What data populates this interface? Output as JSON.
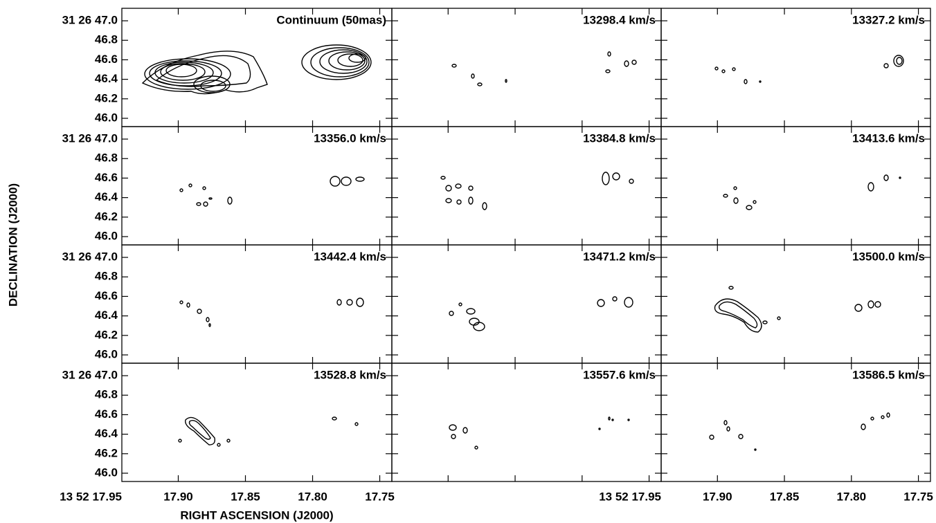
{
  "chart_data": {
    "type": "contour",
    "xlabel": "RIGHT ASCENSION (J2000)",
    "ylabel": "DECLINATION (J2000)",
    "panels": [
      "Continuum (50mas)",
      "13298.4 km/s",
      "13327.2 km/s",
      "13356.0 km/s",
      "13384.8 km/s",
      "13413.6 km/s",
      "13442.4 km/s",
      "13471.2 km/s",
      "13500.0 km/s",
      "13528.8 km/s",
      "13557.6 km/s",
      "13586.5 km/s"
    ],
    "xlim": [
      17.942,
      17.741
    ],
    "xticks": [
      {
        "value": 17.95,
        "label": "13 52 17.95"
      },
      {
        "value": 17.9,
        "label": "17.90"
      },
      17.85,
      {
        "value": 17.8,
        "label": "17.80"
      },
      17.75
    ],
    "ylim": [
      45.915,
      47.128
    ],
    "yticks": [
      {
        "value": 46,
        "label": "46.0"
      },
      46.2,
      46.4,
      46.6,
      46.8,
      {
        "value": 47,
        "label": "31 26 47.0"
      }
    ]
  }
}
